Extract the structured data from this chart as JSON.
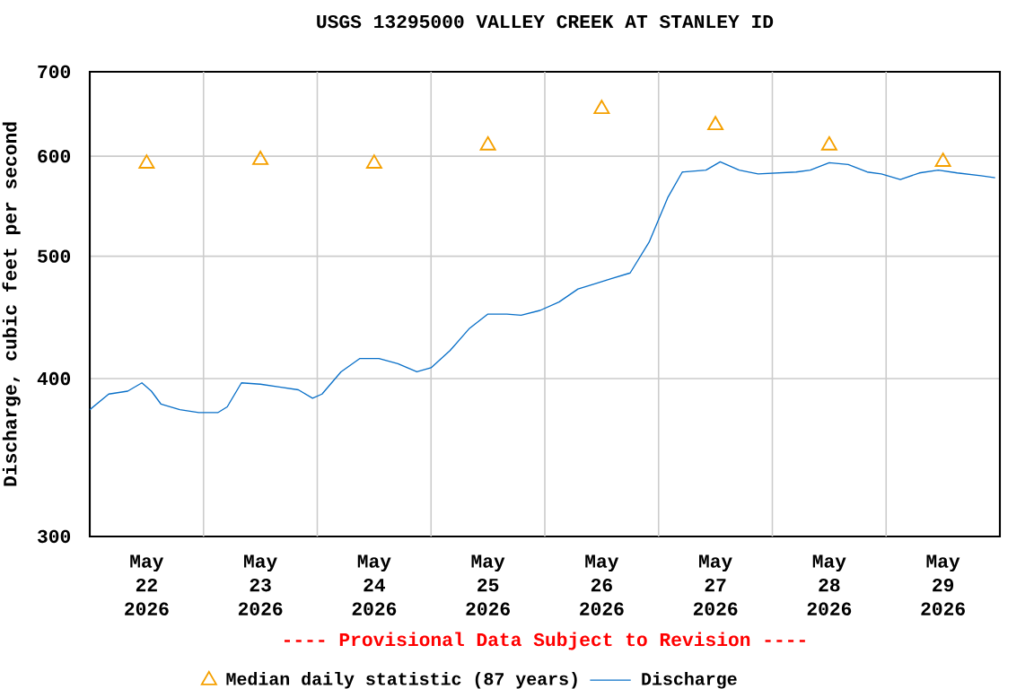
{
  "chart_data": {
    "type": "line",
    "title": "USGS 13295000 VALLEY CREEK AT STANLEY ID",
    "ylabel": "Discharge, cubic feet per second",
    "xlim": [
      "2026-05-22T00:00",
      "2026-05-30T00:00"
    ],
    "xticks": [
      {
        "value": "2026-05-22T12:00",
        "label": "May 22 2026"
      },
      {
        "value": "2026-05-23T12:00",
        "label": "May 23 2026"
      },
      {
        "value": "2026-05-24T12:00",
        "label": "May 24 2026"
      },
      {
        "value": "2026-05-25T12:00",
        "label": "May 25 2026"
      },
      {
        "value": "2026-05-26T12:00",
        "label": "May 26 2026"
      },
      {
        "value": "2026-05-27T12:00",
        "label": "May 27 2026"
      },
      {
        "value": "2026-05-28T12:00",
        "label": "May 28 2026"
      },
      {
        "value": "2026-05-29T12:00",
        "label": "May 29 2026"
      },
      {
        "value": "2026-05-23T00:00",
        "label": null
      },
      {
        "value": "2026-05-24T00:00",
        "label": null
      },
      {
        "value": "2026-05-25T00:00",
        "label": null
      },
      {
        "value": "2026-05-26T00:00",
        "label": null
      },
      {
        "value": "2026-05-27T00:00",
        "label": null
      },
      {
        "value": "2026-05-28T00:00",
        "label": null
      },
      {
        "value": "2026-05-29T00:00",
        "label": null
      }
    ],
    "ylim": [
      300,
      700
    ],
    "yticks": [
      300,
      400,
      500,
      600,
      700
    ],
    "log": "y",
    "grid": true,
    "legend": "bottom",
    "annotations": [
      "---- Provisional Data Subject to Revision ----"
    ],
    "series": [
      {
        "name": "Median daily statistic (87 years)",
        "type": "scatter",
        "marker": "triangle",
        "color": "#f5a000",
        "x": [
          "2026-05-22T12:00",
          "2026-05-23T12:00",
          "2026-05-24T12:00",
          "2026-05-25T12:00",
          "2026-05-26T12:00",
          "2026-05-27T12:00",
          "2026-05-28T12:00",
          "2026-05-29T12:00"
        ],
        "values": [
          592,
          596,
          592,
          612,
          654,
          635,
          612,
          594
        ]
      },
      {
        "name": "Discharge",
        "marker": "none",
        "color": "#0a70c8",
        "x": [
          "2026-05-22T00:00",
          "2026-05-22T04:00",
          "2026-05-22T08:00",
          "2026-05-22T11:00",
          "2026-05-22T13:00",
          "2026-05-22T15:00",
          "2026-05-22T19:00",
          "2026-05-22T23:00",
          "2026-05-23T03:00",
          "2026-05-23T05:00",
          "2026-05-23T08:00",
          "2026-05-23T12:00",
          "2026-05-23T16:00",
          "2026-05-23T20:00",
          "2026-05-23T23:00",
          "2026-05-24T01:00",
          "2026-05-24T05:00",
          "2026-05-24T09:00",
          "2026-05-24T13:00",
          "2026-05-24T17:00",
          "2026-05-24T21:00",
          "2026-05-25T00:00",
          "2026-05-25T04:00",
          "2026-05-25T08:00",
          "2026-05-25T12:00",
          "2026-05-25T16:00",
          "2026-05-25T19:00",
          "2026-05-25T23:00",
          "2026-05-26T03:00",
          "2026-05-26T07:00",
          "2026-05-26T11:00",
          "2026-05-26T14:00",
          "2026-05-26T18:00",
          "2026-05-26T22:00",
          "2026-05-27T02:00",
          "2026-05-27T05:00",
          "2026-05-27T10:00",
          "2026-05-27T13:00",
          "2026-05-27T17:00",
          "2026-05-27T21:00",
          "2026-05-28T01:00",
          "2026-05-28T05:00",
          "2026-05-28T08:00",
          "2026-05-28T12:00",
          "2026-05-28T16:00",
          "2026-05-28T20:00",
          "2026-05-28T23:00",
          "2026-05-29T03:00",
          "2026-05-29T07:00",
          "2026-05-29T11:00",
          "2026-05-29T15:00",
          "2026-05-29T20:00",
          "2026-05-29T23:00"
        ],
        "values": [
          378,
          389,
          391,
          397,
          391,
          382,
          378,
          376,
          376,
          380,
          397,
          396,
          394,
          392,
          386,
          389,
          405,
          415,
          415,
          411,
          405,
          408,
          421,
          438,
          450,
          450,
          449,
          453,
          460,
          471,
          476,
          480,
          485,
          513,
          557,
          583,
          585,
          594,
          585,
          581,
          582,
          583,
          585,
          593,
          591,
          583,
          581,
          575,
          582,
          585,
          582,
          579,
          577
        ]
      }
    ]
  }
}
